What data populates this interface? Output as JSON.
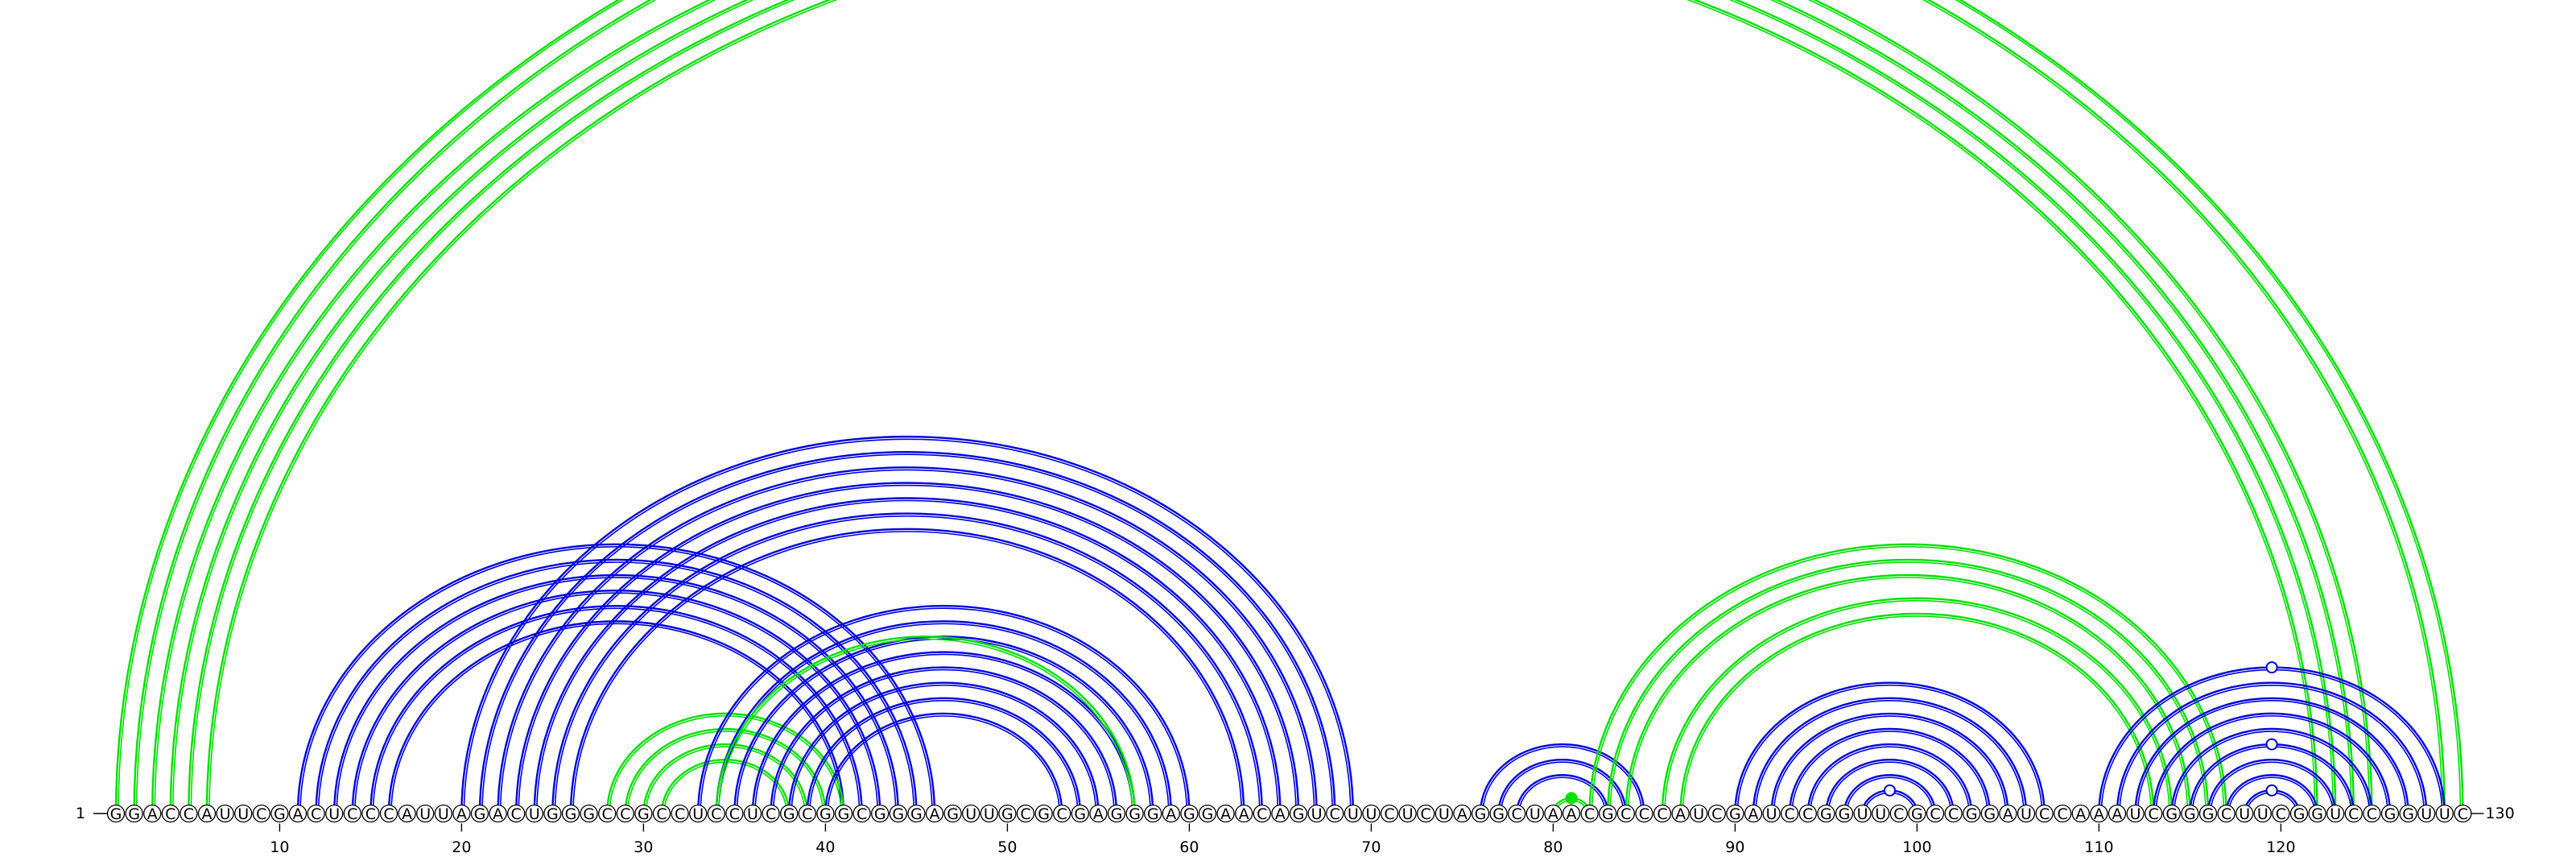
{
  "chart_data": {
    "type": "arc-diagram",
    "sequence": "GGACCAUUCGACUCCCAUUAGACUGGGCCGCCUCCUCGCGGCGGGAGUUGCGCGAGGGAGGAACAGUCUUCUCUAGGCUAACGCCCAUCGAUCCGGUUCGCCGGAUCCAAAUCGGGCUUCGGUCCGGUUC",
    "start_label": "1",
    "end_label": "130",
    "ticks": [
      10,
      20,
      30,
      40,
      50,
      60,
      70,
      80,
      90,
      100,
      110,
      120
    ],
    "tick_labels": [
      "10",
      "20",
      "30",
      "40",
      "50",
      "60",
      "70",
      "80",
      "90",
      "100",
      "110",
      "120"
    ],
    "colors": {
      "blue": "#0000dd",
      "green": "#00e000"
    },
    "helices": [
      {
        "color": "green",
        "pairs": [
          [
            1,
            130
          ],
          [
            2,
            129
          ],
          [
            3,
            125
          ],
          [
            4,
            124
          ],
          [
            5,
            123
          ],
          [
            6,
            122
          ]
        ]
      },
      {
        "color": "blue",
        "pairs": [
          [
            11,
            46
          ],
          [
            12,
            45
          ],
          [
            13,
            44
          ],
          [
            14,
            43
          ],
          [
            15,
            42
          ],
          [
            16,
            41
          ]
        ]
      },
      {
        "color": "blue",
        "pairs": [
          [
            20,
            69
          ],
          [
            21,
            68
          ],
          [
            22,
            67
          ],
          [
            23,
            66
          ],
          [
            24,
            65
          ],
          [
            25,
            64
          ],
          [
            26,
            63
          ]
        ]
      },
      {
        "color": "green",
        "pairs": [
          [
            28,
            41
          ],
          [
            29,
            40
          ],
          [
            30,
            39
          ],
          [
            31,
            38
          ]
        ]
      },
      {
        "color": "blue",
        "pairs": [
          [
            33,
            60
          ],
          [
            34,
            59
          ],
          [
            35,
            58
          ],
          [
            36,
            57
          ],
          [
            37,
            56
          ],
          [
            38,
            55
          ],
          [
            39,
            54
          ],
          [
            40,
            53
          ]
        ]
      },
      {
        "color": "green",
        "pairs": [
          [
            34,
            57
          ]
        ]
      },
      {
        "color": "blue",
        "pairs": [
          [
            76,
            85
          ],
          [
            77,
            84
          ],
          [
            78,
            83
          ]
        ]
      },
      {
        "color": "green",
        "pairs": [
          [
            80,
            82
          ]
        ]
      },
      {
        "color": "green",
        "pairs": [
          [
            82,
            117
          ],
          [
            83,
            116
          ],
          [
            84,
            115
          ],
          [
            86,
            114
          ],
          [
            87,
            113
          ]
        ]
      },
      {
        "color": "blue",
        "pairs": [
          [
            90,
            107
          ],
          [
            91,
            106
          ],
          [
            92,
            105
          ],
          [
            93,
            104
          ],
          [
            94,
            103
          ],
          [
            95,
            102
          ],
          [
            96,
            101
          ],
          [
            97,
            100
          ]
        ]
      },
      {
        "color": "blue",
        "pairs": [
          [
            110,
            129
          ],
          [
            111,
            128
          ],
          [
            112,
            127
          ],
          [
            113,
            126
          ],
          [
            114,
            125
          ],
          [
            115,
            124
          ],
          [
            116,
            123
          ],
          [
            117,
            122
          ],
          [
            118,
            121
          ]
        ]
      }
    ],
    "markers": [
      {
        "pair": [
          1,
          130
        ],
        "style": "open",
        "color": "green"
      },
      {
        "pair": [
          80,
          82
        ],
        "style": "filled",
        "color": "green"
      },
      {
        "pair": [
          97,
          100
        ],
        "style": "open",
        "color": "blue"
      },
      {
        "pair": [
          110,
          129
        ],
        "style": "open",
        "color": "blue"
      },
      {
        "pair": [
          115,
          124
        ],
        "style": "open",
        "color": "blue"
      },
      {
        "pair": [
          118,
          121
        ],
        "style": "open",
        "color": "blue"
      }
    ]
  }
}
